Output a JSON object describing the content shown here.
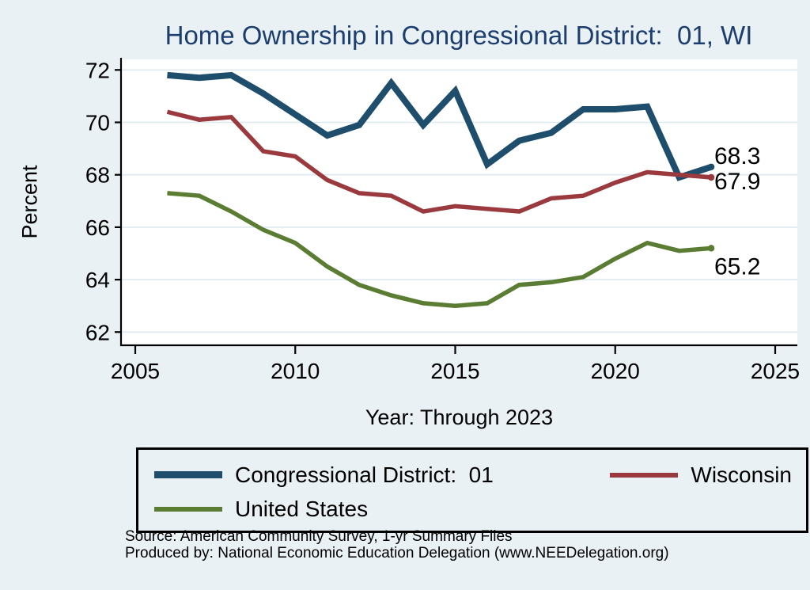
{
  "colors": {
    "background": "#eaf1f4",
    "plot_background": "#ffffff",
    "grid": "#dde9f0",
    "axis": "#000000",
    "title": "#1c3e6e",
    "district_blue": "#1f4e6d",
    "wisconsin_maroon": "#9b3a3e",
    "us_green": "#5a7d33"
  },
  "source": {
    "line1": "Source: American Community Survey, 1-yr Summary Files",
    "line2": "Produced by: National Economic Education Delegation (www.NEEDelegation.org)"
  },
  "chart_data": {
    "type": "line",
    "title": "Home Ownership in Congressional District:  01, WI",
    "xlabel": "Year: Through 2023",
    "ylabel": "Percent",
    "x": [
      2006,
      2007,
      2008,
      2009,
      2010,
      2011,
      2012,
      2013,
      2014,
      2015,
      2016,
      2017,
      2018,
      2019,
      2020,
      2021,
      2022,
      2023
    ],
    "series": [
      {
        "name": "Congressional District:  01",
        "color": "#1f4e6d",
        "stroke_width": 8,
        "values": [
          71.8,
          71.7,
          71.8,
          71.1,
          70.3,
          69.5,
          69.9,
          71.5,
          69.9,
          71.2,
          68.4,
          69.3,
          69.6,
          70.5,
          70.5,
          70.6,
          67.9,
          68.3
        ]
      },
      {
        "name": "Wisconsin",
        "color": "#9b3a3e",
        "stroke_width": 5.5,
        "values": [
          70.4,
          70.1,
          70.2,
          68.9,
          68.7,
          67.8,
          67.3,
          67.2,
          66.6,
          66.8,
          66.7,
          66.6,
          67.1,
          67.2,
          67.7,
          68.1,
          68.0,
          67.9
        ]
      },
      {
        "name": "United States",
        "color": "#5a7d33",
        "stroke_width": 5.5,
        "values": [
          67.3,
          67.2,
          66.6,
          65.9,
          65.4,
          64.5,
          63.8,
          63.4,
          63.1,
          63.0,
          63.1,
          63.8,
          63.9,
          64.1,
          64.8,
          65.4,
          65.1,
          65.2
        ]
      }
    ],
    "end_labels": [
      "68.3",
      "67.9",
      "65.2"
    ],
    "xlim": [
      2005,
      2025
    ],
    "ylim": [
      62,
      72
    ],
    "xticks": [
      2005,
      2010,
      2015,
      2020,
      2025
    ],
    "yticks": [
      62,
      64,
      66,
      68,
      70,
      72
    ],
    "grid": "horizontal",
    "legend_position": "bottom"
  }
}
